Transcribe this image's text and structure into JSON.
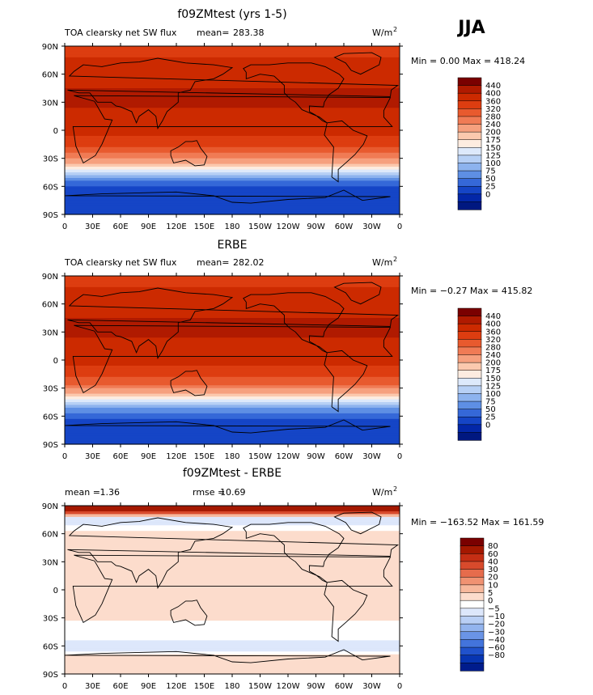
{
  "season_label": "JJA",
  "units_label": "W/m",
  "units_exp": "2",
  "chart_data": [
    {
      "type": "heatmap",
      "title": "f09ZMtest (yrs 1-5)",
      "subtitle": "TOA clearsky net SW flux",
      "mean_label": "mean=",
      "mean": "283.38",
      "minmax": "Min =    0.00 Max = 418.24",
      "min": 0.0,
      "max": 418.24,
      "lat_ticks": [
        "90N",
        "60N",
        "30N",
        "0",
        "30S",
        "60S",
        "90S"
      ],
      "lon_ticks": [
        "0",
        "30E",
        "60E",
        "90E",
        "120E",
        "150E",
        "180",
        "150W",
        "120W",
        "90W",
        "60W",
        "30W",
        "0"
      ],
      "zonal_profile": [
        {
          "lat": 90,
          "value": 330
        },
        {
          "lat": 75,
          "value": 370
        },
        {
          "lat": 60,
          "value": 385
        },
        {
          "lat": 45,
          "value": 400
        },
        {
          "lat": 30,
          "value": 410
        },
        {
          "lat": 15,
          "value": 385
        },
        {
          "lat": 0,
          "value": 370
        },
        {
          "lat": -15,
          "value": 340
        },
        {
          "lat": -25,
          "value": 280
        },
        {
          "lat": -35,
          "value": 200
        },
        {
          "lat": -45,
          "value": 120
        },
        {
          "lat": -55,
          "value": 50
        },
        {
          "lat": -65,
          "value": 10
        },
        {
          "lat": -90,
          "value": 0
        }
      ],
      "colorbar": {
        "labels": [
          "440",
          "400",
          "360",
          "320",
          "280",
          "240",
          "200",
          "175",
          "150",
          "125",
          "100",
          "75",
          "50",
          "25",
          "0"
        ],
        "colors": [
          "#7a0000",
          "#b01a00",
          "#cc2a00",
          "#dd3d10",
          "#e85a2e",
          "#f07b55",
          "#f6a07e",
          "#fbc9ae",
          "#fdece0",
          "#dde9fb",
          "#b7d0f5",
          "#8db3ee",
          "#5e8fe4",
          "#3568d8",
          "#1545c6",
          "#0327a8",
          "#001880"
        ]
      }
    },
    {
      "type": "heatmap",
      "title": "ERBE",
      "subtitle": "TOA clearsky net SW flux",
      "mean_label": "mean=",
      "mean": "282.02",
      "minmax": "Min =  −0.27 Max = 415.82",
      "min": -0.27,
      "max": 415.82,
      "lat_ticks": [
        "90N",
        "60N",
        "30N",
        "0",
        "30S",
        "60S",
        "90S"
      ],
      "lon_ticks": [
        "0",
        "30E",
        "60E",
        "90E",
        "120E",
        "150E",
        "180",
        "150W",
        "120W",
        "90W",
        "60W",
        "30W",
        "0"
      ],
      "zonal_profile": [
        {
          "lat": 90,
          "value": 330
        },
        {
          "lat": 75,
          "value": 370
        },
        {
          "lat": 60,
          "value": 385
        },
        {
          "lat": 45,
          "value": 400
        },
        {
          "lat": 30,
          "value": 410
        },
        {
          "lat": 15,
          "value": 385
        },
        {
          "lat": 0,
          "value": 370
        },
        {
          "lat": -15,
          "value": 340
        },
        {
          "lat": -25,
          "value": 290
        },
        {
          "lat": -35,
          "value": 210
        },
        {
          "lat": -45,
          "value": 130
        },
        {
          "lat": -55,
          "value": 55
        },
        {
          "lat": -65,
          "value": 15
        },
        {
          "lat": -90,
          "value": 0
        }
      ],
      "colorbar": {
        "labels": [
          "440",
          "400",
          "360",
          "320",
          "280",
          "240",
          "200",
          "175",
          "150",
          "125",
          "100",
          "75",
          "50",
          "25",
          "0"
        ],
        "colors": [
          "#7a0000",
          "#b01a00",
          "#cc2a00",
          "#dd3d10",
          "#e85a2e",
          "#f07b55",
          "#f6a07e",
          "#fbc9ae",
          "#fdece0",
          "#dde9fb",
          "#b7d0f5",
          "#8db3ee",
          "#5e8fe4",
          "#3568d8",
          "#1545c6",
          "#0327a8",
          "#001880"
        ]
      }
    },
    {
      "type": "heatmap",
      "title": "f09ZMtest - ERBE",
      "mean_label": "mean =",
      "mean": "1.36",
      "rmse_label": "rmse =",
      "rmse": "10.69",
      "minmax": "Min = −163.52 Max = 161.59",
      "min": -163.52,
      "max": 161.59,
      "lat_ticks": [
        "90N",
        "60N",
        "30N",
        "0",
        "30S",
        "60S",
        "90S"
      ],
      "lon_ticks": [
        "0",
        "30E",
        "60E",
        "90E",
        "120E",
        "150E",
        "180",
        "150W",
        "120W",
        "90W",
        "60W",
        "30W",
        "0"
      ],
      "zonal_profile": [
        {
          "lat": 90,
          "value": 80
        },
        {
          "lat": 85,
          "value": 60
        },
        {
          "lat": 78,
          "value": -10
        },
        {
          "lat": 70,
          "value": -5
        },
        {
          "lat": 60,
          "value": 2
        },
        {
          "lat": 30,
          "value": 3
        },
        {
          "lat": 0,
          "value": 1
        },
        {
          "lat": -30,
          "value": 2
        },
        {
          "lat": -40,
          "value": -5
        },
        {
          "lat": -50,
          "value": 0
        },
        {
          "lat": -60,
          "value": -10
        },
        {
          "lat": -70,
          "value": 0
        },
        {
          "lat": -90,
          "value": 0
        }
      ],
      "colorbar": {
        "labels": [
          "80",
          "60",
          "40",
          "30",
          "20",
          "10",
          "5",
          "0",
          "−5",
          "−10",
          "−20",
          "−30",
          "−40",
          "−60",
          "−80"
        ],
        "colors": [
          "#7a0000",
          "#a41800",
          "#c42e14",
          "#d84a2c",
          "#e66c4c",
          "#f09272",
          "#f7b89c",
          "#fcdccc",
          "#ffffff",
          "#dde7fb",
          "#b9cff5",
          "#93b4ee",
          "#6a94e6",
          "#4374dc",
          "#2052cc",
          "#0735b2",
          "#001c8c"
        ]
      }
    }
  ]
}
